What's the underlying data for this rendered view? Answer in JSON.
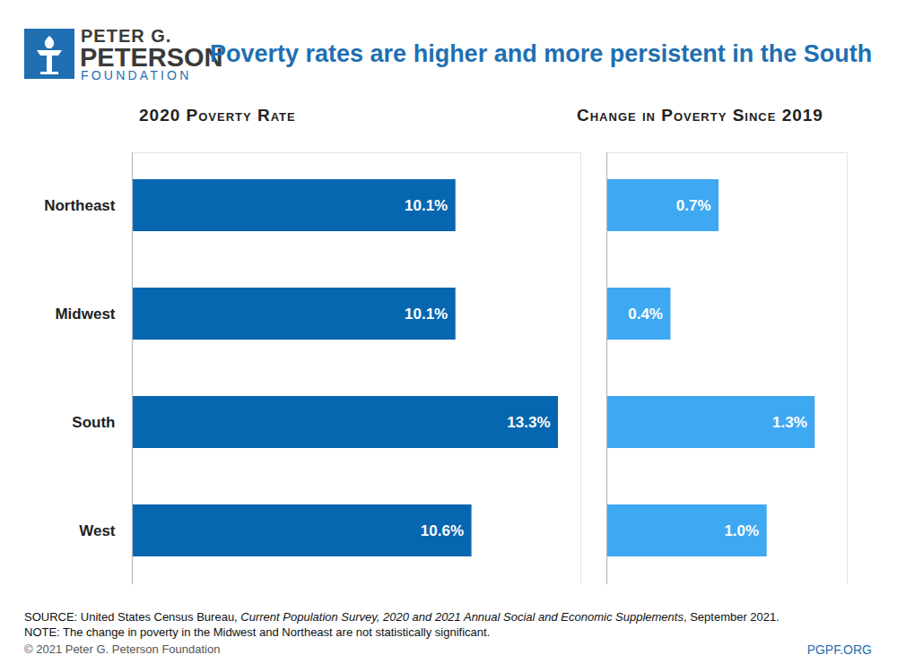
{
  "header": {
    "logo": [
      "PETER G.",
      "PETERSON",
      "FOUNDATION"
    ],
    "title": "Poverty rates are higher and more persistent in the South"
  },
  "chart_data": [
    {
      "type": "bar",
      "orientation": "horizontal",
      "title": "2020 Poverty Rate",
      "categories": [
        "Northeast",
        "Midwest",
        "South",
        "West"
      ],
      "values": [
        10.1,
        10.1,
        13.3,
        10.6
      ],
      "value_labels": [
        "10.1%",
        "10.1%",
        "13.3%",
        "10.6%"
      ],
      "color": "#0766b0",
      "data_labels": true,
      "tick_labels": "y",
      "xlim": [
        0,
        14
      ]
    },
    {
      "type": "bar",
      "orientation": "horizontal",
      "title": "Change in Poverty Since 2019",
      "categories": [
        "Northeast",
        "Midwest",
        "South",
        "West"
      ],
      "values": [
        0.7,
        0.4,
        1.3,
        1.0
      ],
      "value_labels": [
        "0.7%",
        "0.4%",
        "1.3%",
        "1.0%"
      ],
      "color": "#3ea8f2",
      "data_labels": true,
      "tick_labels": false,
      "xlim": [
        0,
        1.5
      ]
    }
  ],
  "footer": {
    "source": {
      "prefix": "SOURCE: United States Census Bureau, ",
      "italic": "Current Population Survey, 2020 and 2021 Annual Social and Economic Supplements",
      "suffix": ", September 2021."
    },
    "note": "NOTE: The change in poverty in the Midwest and Northeast are not statistically significant.",
    "copyright": "© 2021 Peter G. Peterson Foundation",
    "site": "PGPF.ORG"
  }
}
